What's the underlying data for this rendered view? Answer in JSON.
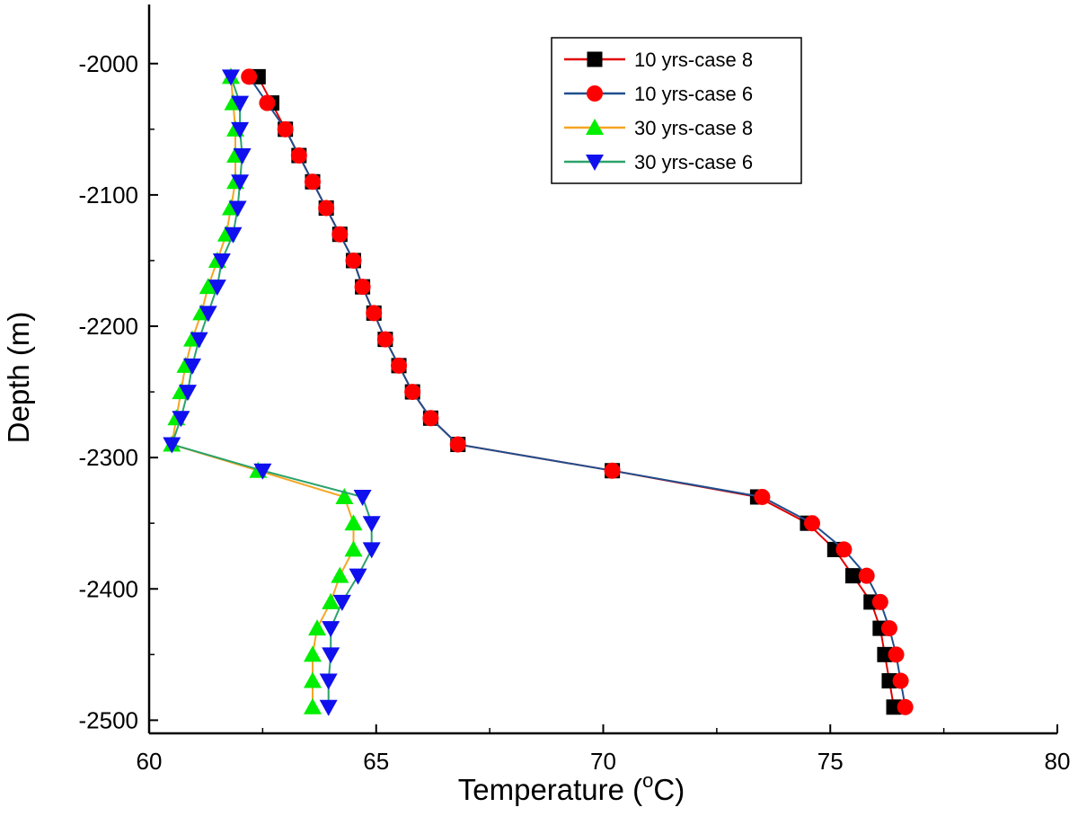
{
  "chart_data": {
    "type": "line",
    "title": "",
    "xlabel": "Temperature (",
    "xlabel_sup": "o",
    "xlabel_suffix": "C)",
    "ylabel": "Depth (m)",
    "xlim": [
      60,
      80
    ],
    "ylim": [
      -2510,
      -1955
    ],
    "x_ticks": [
      60,
      65,
      70,
      75,
      80
    ],
    "y_ticks": [
      -2000,
      -2100,
      -2200,
      -2300,
      -2400,
      -2500
    ],
    "legend_position": "top-right",
    "grid": false,
    "depth": [
      -2010,
      -2030,
      -2050,
      -2070,
      -2090,
      -2110,
      -2130,
      -2150,
      -2170,
      -2190,
      -2210,
      -2230,
      -2250,
      -2270,
      -2290,
      -2310,
      -2330,
      -2350,
      -2370,
      -2390,
      -2410,
      -2430,
      -2450,
      -2470,
      -2490
    ],
    "series": [
      {
        "name": "10 yrs-case 8",
        "line_color": "#e00000",
        "marker": "square",
        "marker_color": "#000000",
        "temperature": [
          62.4,
          62.7,
          63.0,
          63.3,
          63.6,
          63.9,
          64.2,
          64.5,
          64.7,
          64.95,
          65.2,
          65.5,
          65.8,
          66.2,
          66.8,
          70.2,
          73.4,
          74.5,
          75.1,
          75.5,
          75.9,
          76.1,
          76.2,
          76.3,
          76.4
        ]
      },
      {
        "name": "10 yrs-case 6",
        "line_color": "#1f4e8c",
        "marker": "circle",
        "marker_color": "#ff0000",
        "temperature": [
          62.2,
          62.6,
          63.0,
          63.3,
          63.6,
          63.9,
          64.2,
          64.5,
          64.7,
          64.95,
          65.2,
          65.5,
          65.8,
          66.2,
          66.8,
          70.2,
          73.5,
          74.6,
          75.3,
          75.8,
          76.1,
          76.3,
          76.45,
          76.55,
          76.65
        ]
      },
      {
        "name": "30 yrs-case 8",
        "line_color": "#f5a623",
        "marker": "triangle-up",
        "marker_color": "#00ee00",
        "temperature": [
          61.8,
          61.85,
          61.9,
          61.9,
          61.9,
          61.8,
          61.7,
          61.5,
          61.3,
          61.15,
          60.95,
          60.8,
          60.7,
          60.6,
          60.5,
          62.4,
          64.3,
          64.5,
          64.5,
          64.2,
          64.0,
          63.7,
          63.6,
          63.6,
          63.6
        ]
      },
      {
        "name": "30 yrs-case 6",
        "line_color": "#2aa36b",
        "marker": "triangle-down",
        "marker_color": "#1010ee",
        "temperature": [
          61.8,
          62.0,
          62.0,
          62.05,
          62.0,
          61.95,
          61.85,
          61.6,
          61.5,
          61.3,
          61.1,
          60.95,
          60.85,
          60.7,
          60.5,
          62.5,
          64.7,
          64.9,
          64.9,
          64.6,
          64.25,
          64.0,
          64.0,
          63.95,
          63.95
        ]
      }
    ]
  }
}
